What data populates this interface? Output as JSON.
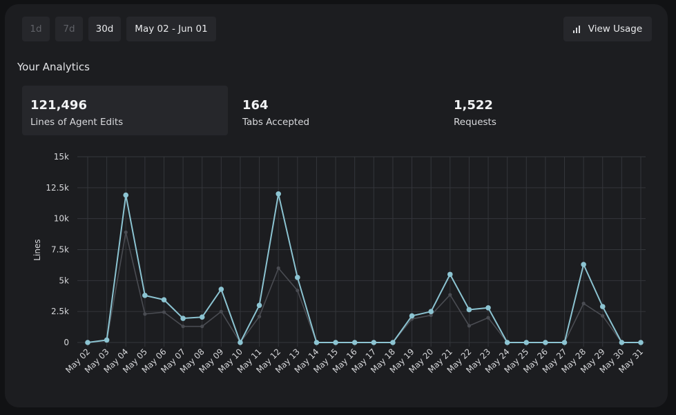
{
  "toolbar": {
    "range_buttons": [
      {
        "label": "1d",
        "state": "disabled"
      },
      {
        "label": "7d",
        "state": "disabled"
      },
      {
        "label": "30d",
        "state": "active"
      }
    ],
    "date_range": "May 02 - Jun 01",
    "view_usage_label": "View Usage",
    "view_usage_icon": "bar-chart-icon"
  },
  "section_title": "Your Analytics",
  "stats": [
    {
      "value": "121,496",
      "label": "Lines of Agent Edits",
      "selected": true
    },
    {
      "value": "164",
      "label": "Tabs Accepted",
      "selected": false
    },
    {
      "value": "1,522",
      "label": "Requests",
      "selected": false
    }
  ],
  "colors": {
    "primary_series": "#8cc4d2",
    "secondary_series": "#4a4c52",
    "panel": "#1c1d20",
    "grid": "#34363b"
  },
  "chart_data": {
    "type": "line",
    "ylabel": "Lines",
    "xlabel": "",
    "ylim": [
      0,
      15000
    ],
    "yticks": [
      {
        "value": 0,
        "label": "0"
      },
      {
        "value": 2500,
        "label": "2.5k"
      },
      {
        "value": 5000,
        "label": "5k"
      },
      {
        "value": 7500,
        "label": "7.5k"
      },
      {
        "value": 10000,
        "label": "10k"
      },
      {
        "value": 12500,
        "label": "12.5k"
      },
      {
        "value": 15000,
        "label": "15k"
      }
    ],
    "grid": true,
    "categories": [
      "May 02",
      "May 03",
      "May 04",
      "May 05",
      "May 06",
      "May 07",
      "May 08",
      "May 09",
      "May 10",
      "May 11",
      "May 12",
      "May 13",
      "May 14",
      "May 15",
      "May 16",
      "May 17",
      "May 18",
      "May 19",
      "May 20",
      "May 21",
      "May 22",
      "May 23",
      "May 24",
      "May 25",
      "May 26",
      "May 27",
      "May 28",
      "May 29",
      "May 30",
      "May 31"
    ],
    "series": [
      {
        "values": [
          0,
          200,
          11900,
          3800,
          3450,
          1950,
          2050,
          4300,
          0,
          3000,
          12000,
          5250,
          0,
          0,
          0,
          0,
          0,
          2150,
          2500,
          5500,
          2650,
          2800,
          0,
          0,
          0,
          0,
          6300,
          2900,
          0,
          0
        ]
      },
      {
        "values": [
          0,
          150,
          8900,
          2300,
          2450,
          1300,
          1300,
          2500,
          0,
          2100,
          6000,
          4200,
          0,
          0,
          0,
          0,
          0,
          1900,
          2200,
          3850,
          1350,
          2000,
          0,
          0,
          0,
          0,
          3150,
          2150,
          0,
          0
        ]
      }
    ]
  }
}
